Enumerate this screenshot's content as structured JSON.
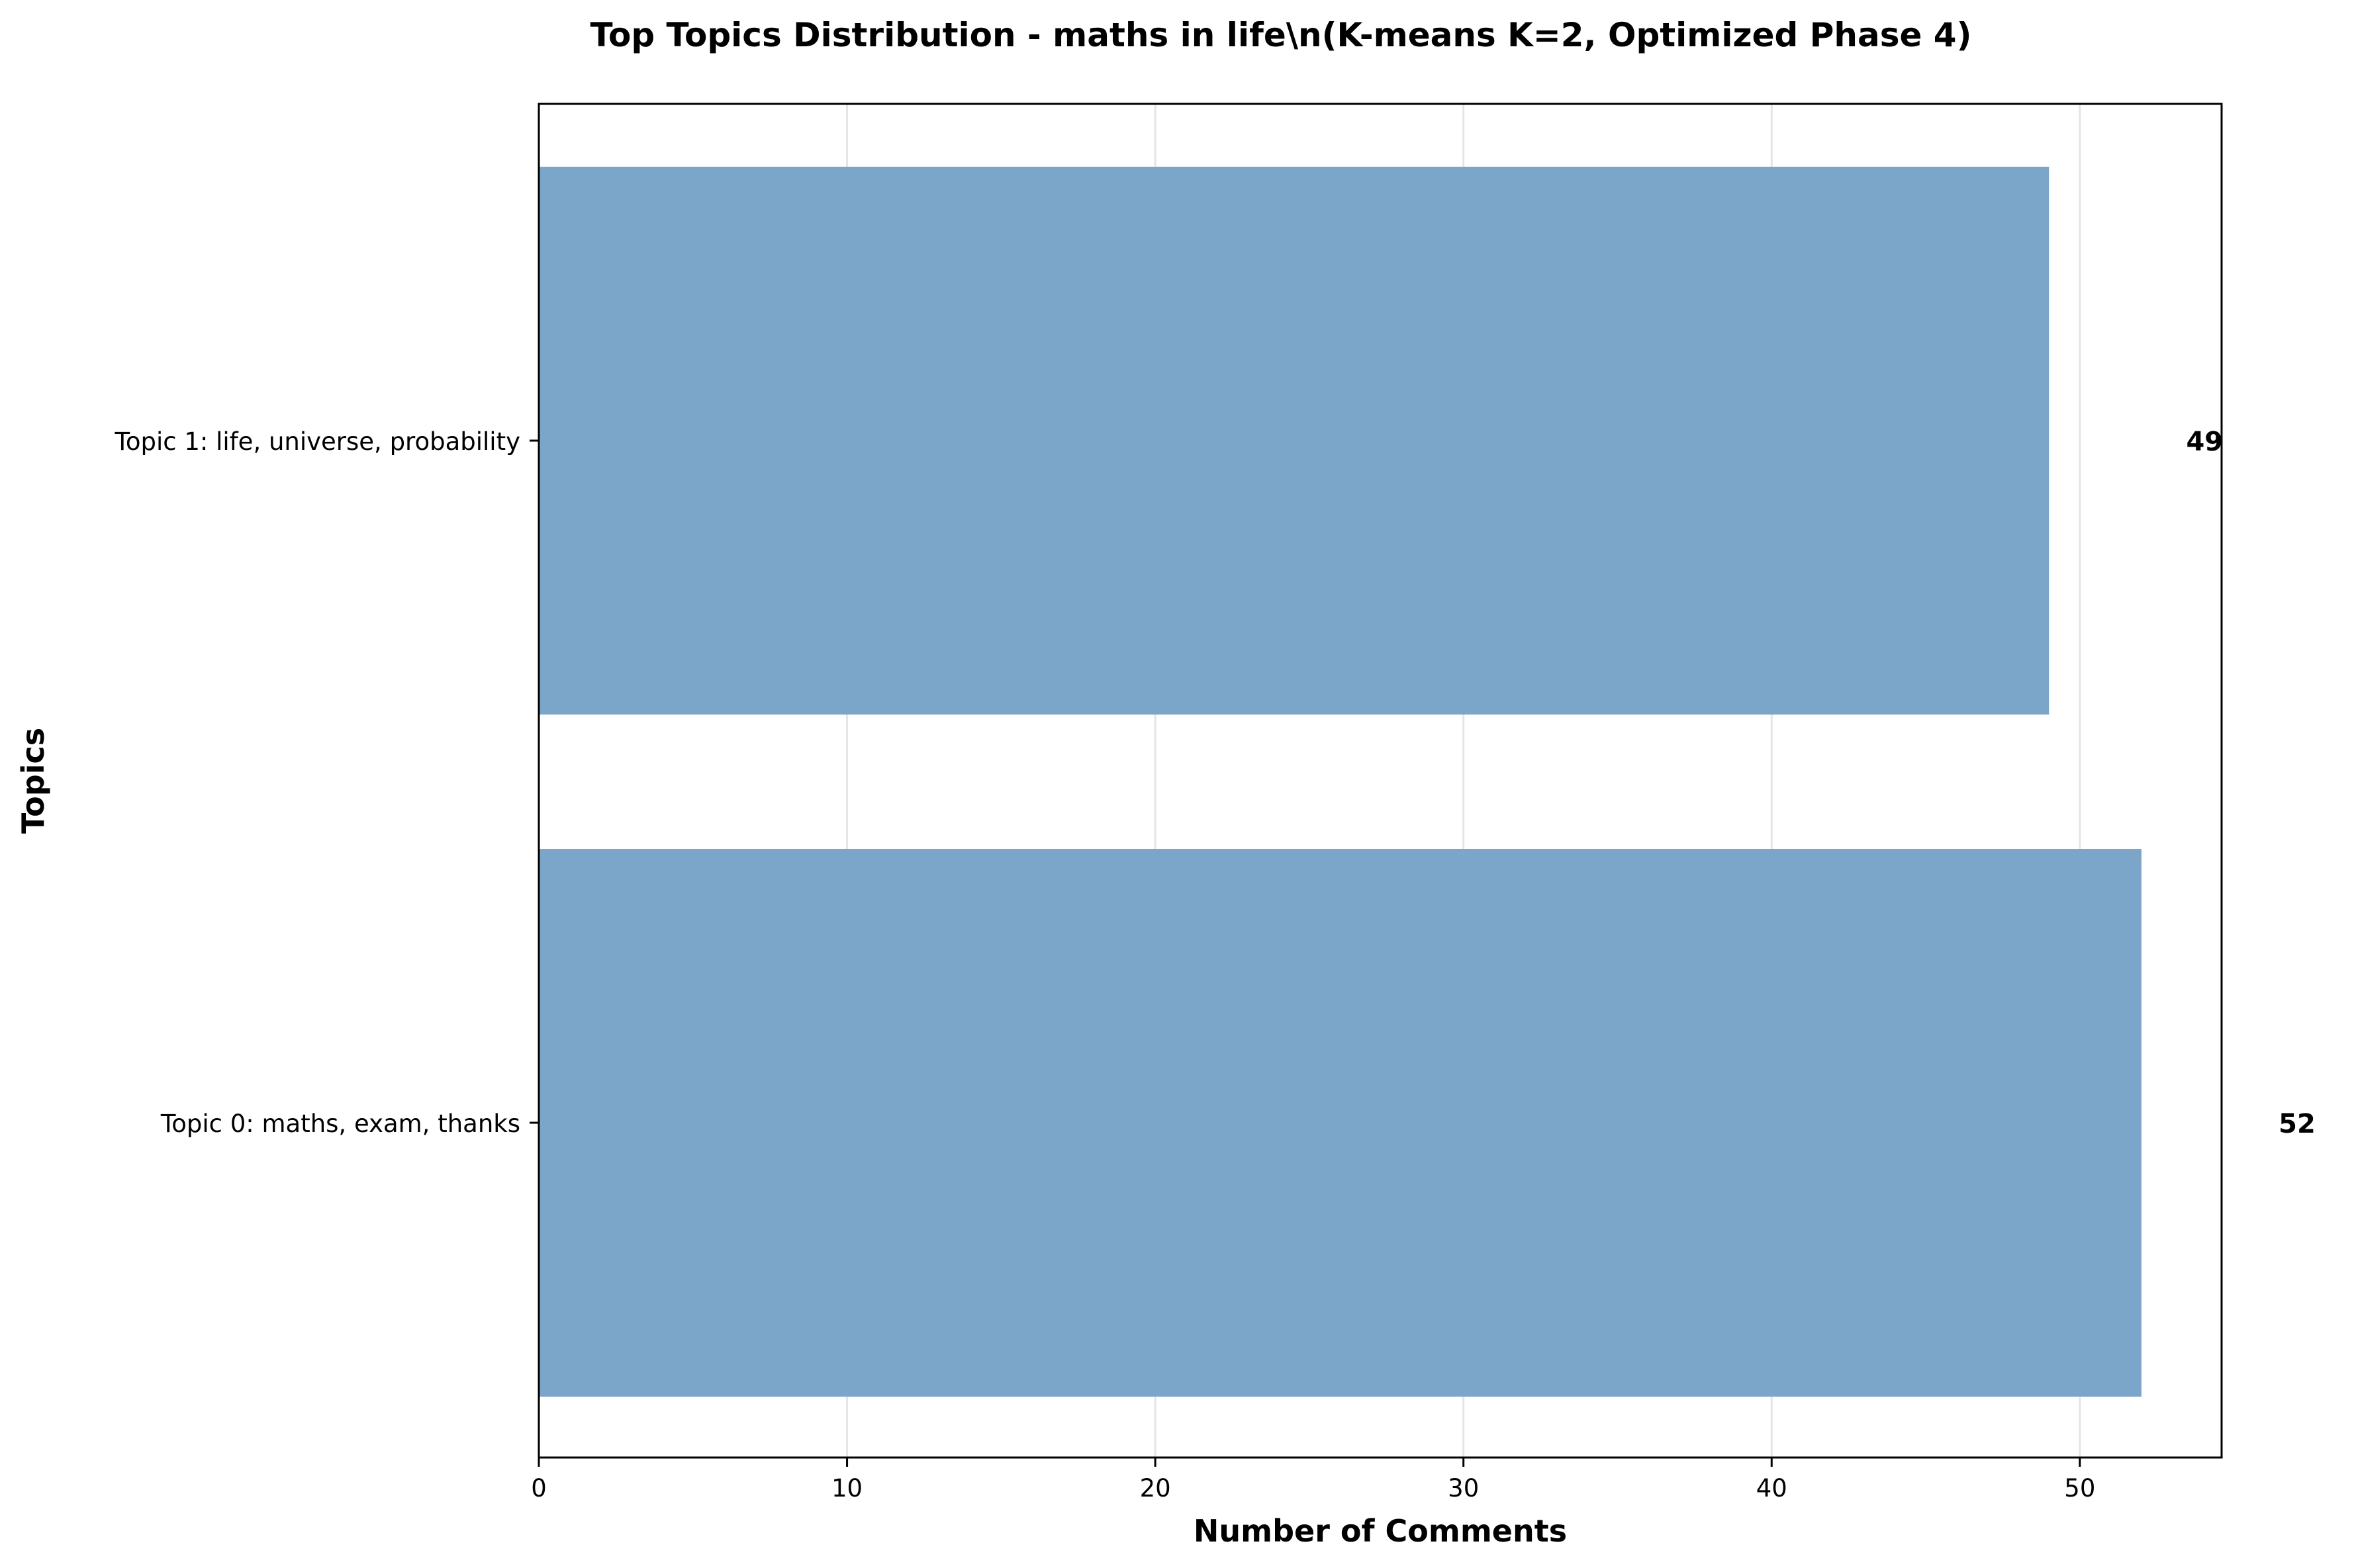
{
  "chart_data": {
    "type": "bar",
    "orientation": "horizontal",
    "title": "Top Topics Distribution - maths in life\\n(K-means K=2, Optimized Phase 4)",
    "xlabel": "Number of Comments",
    "ylabel": "Topics",
    "categories": [
      "Topic 1: life, universe, probability",
      "Topic 0: maths, exam, thanks"
    ],
    "values": [
      49,
      52
    ],
    "data_labels": [
      "49",
      "52"
    ],
    "xlim": [
      0,
      54.6
    ],
    "xticks": [
      0,
      10,
      20,
      30,
      40,
      50
    ],
    "xtick_labels": [
      "0",
      "10",
      "20",
      "30",
      "40",
      "50"
    ],
    "grid": "vertical",
    "bar_color": "#7ba6c9",
    "grid_color": "#e5e5e5",
    "axis_color": "#000000"
  }
}
